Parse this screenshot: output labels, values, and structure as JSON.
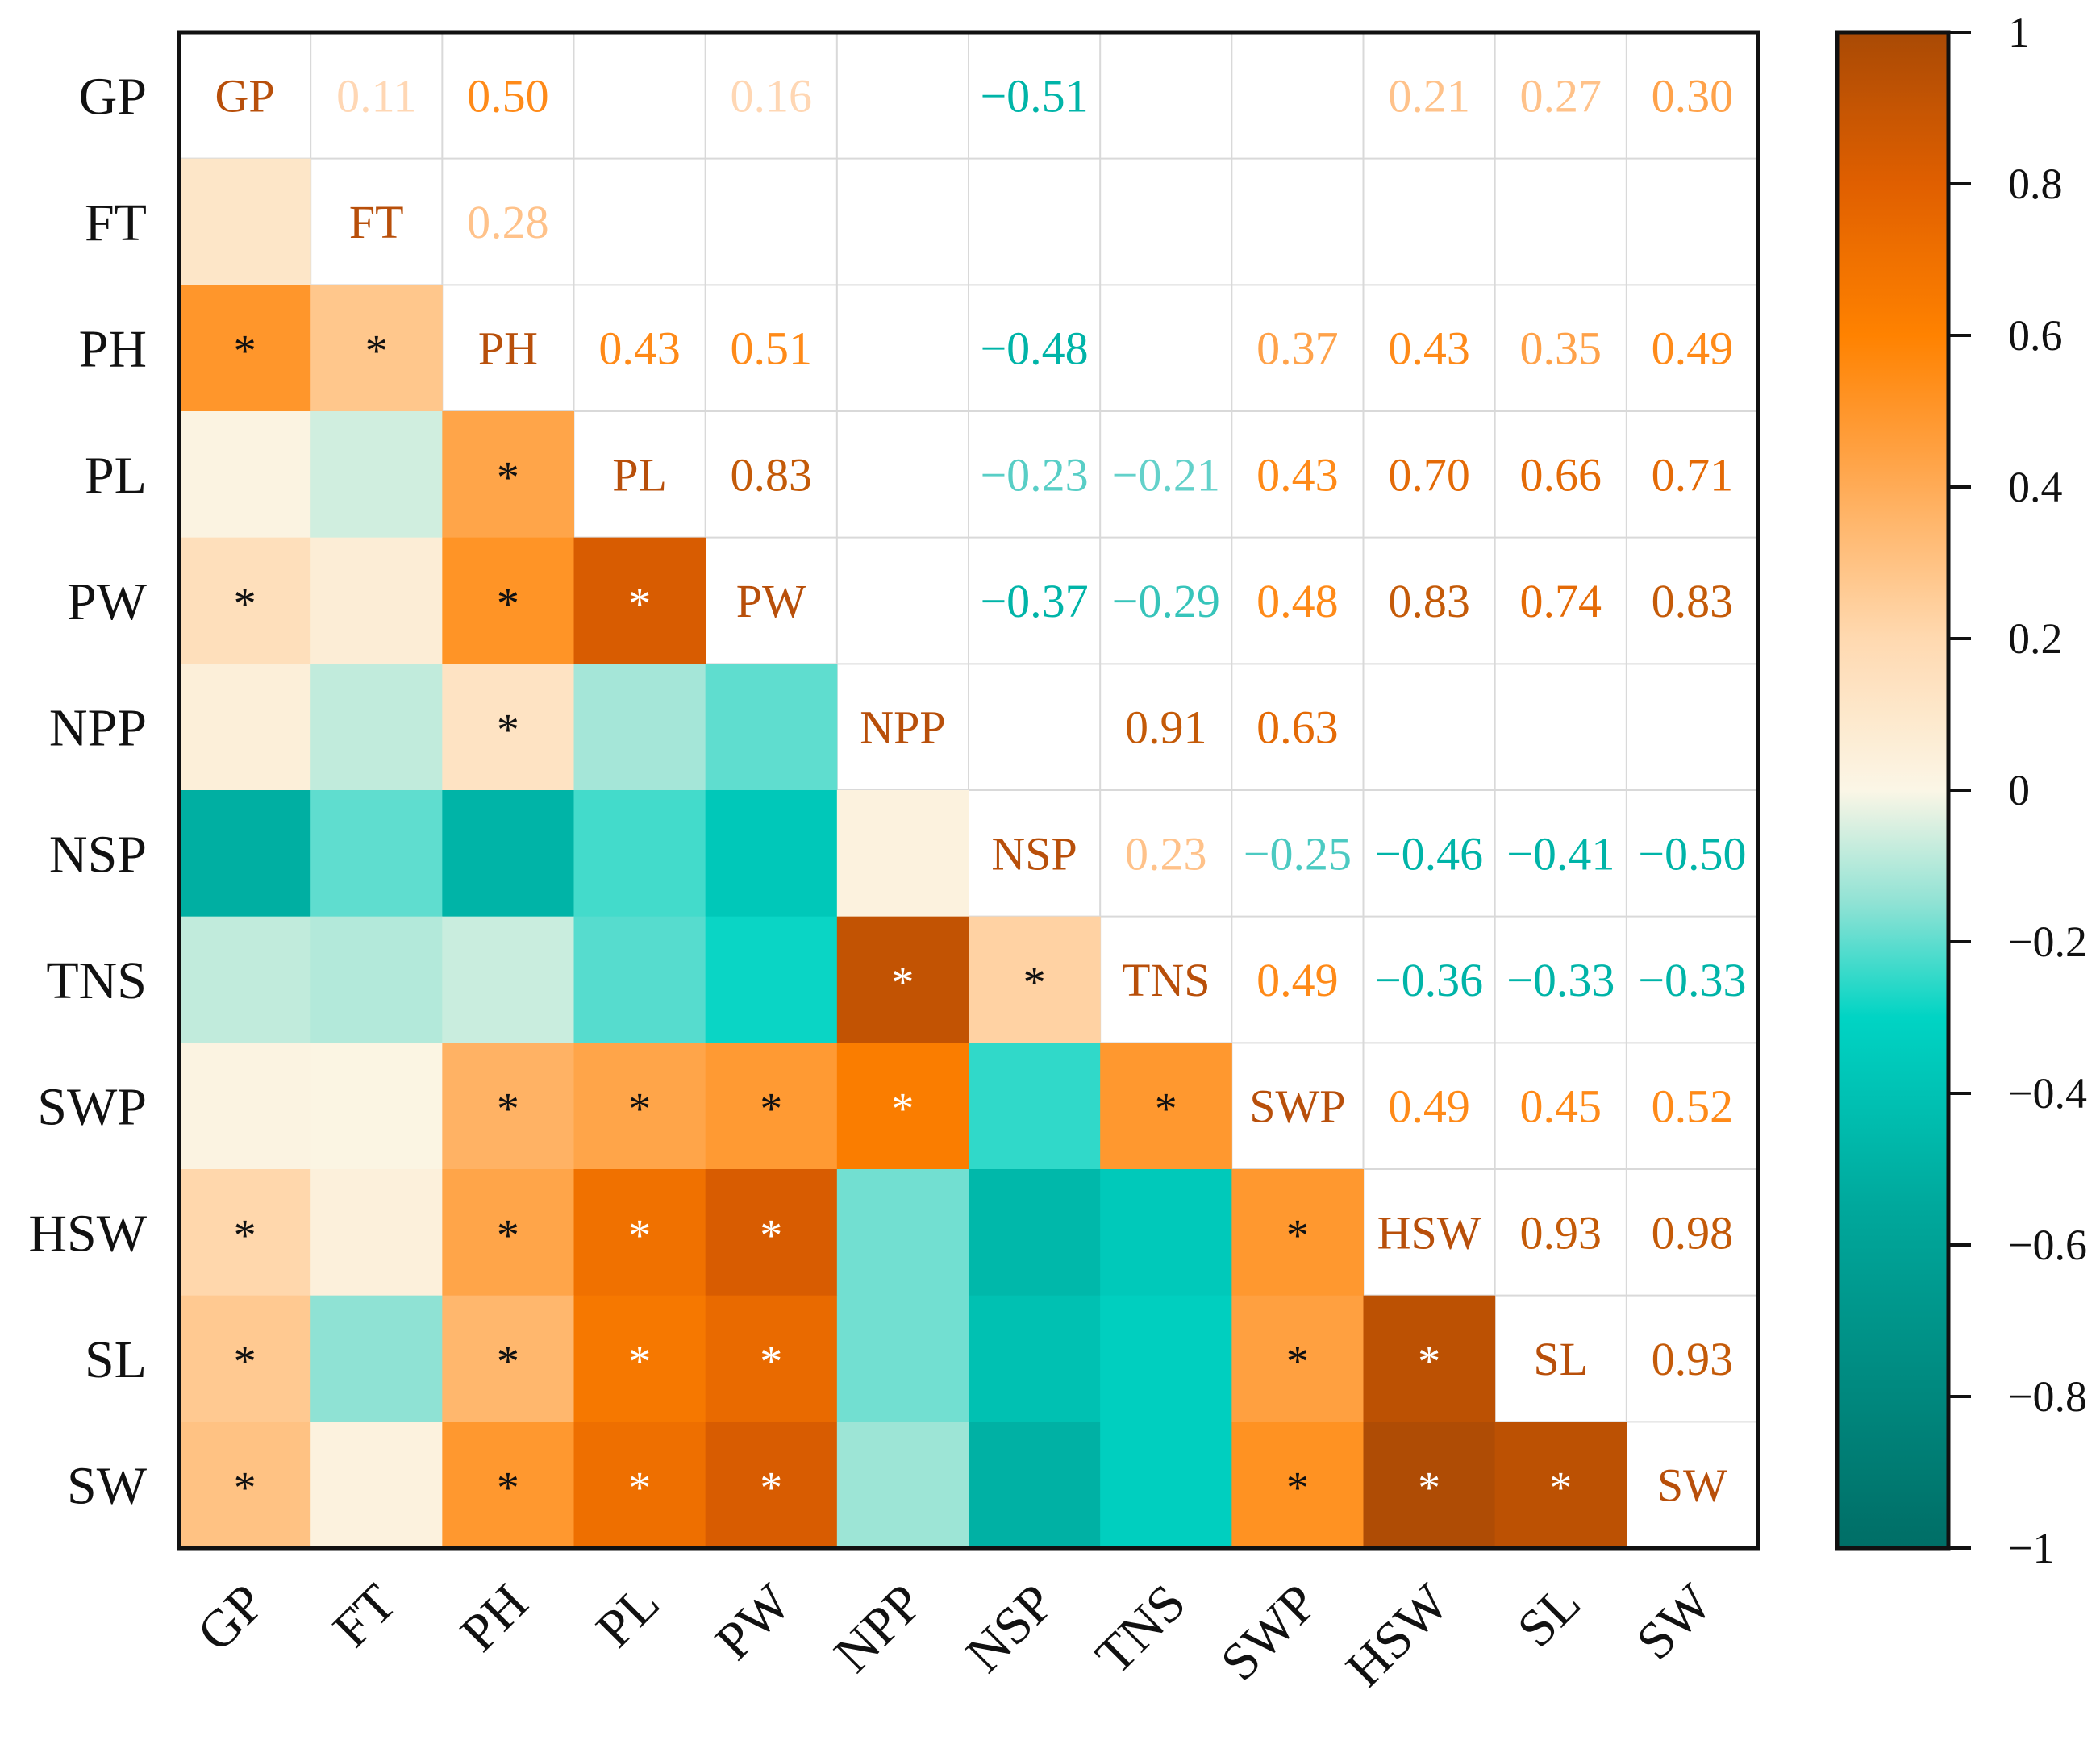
{
  "chart_data": {
    "type": "heatmap",
    "title": "",
    "variables": [
      "GP",
      "FT",
      "PH",
      "PL",
      "PW",
      "NPP",
      "NSP",
      "TNS",
      "SWP",
      "HSW",
      "SL",
      "SW"
    ],
    "correlation_matrix": [
      [
        1.0,
        0.11,
        0.5,
        0.02,
        0.16,
        0.05,
        -0.51,
        -0.08,
        0.02,
        0.21,
        0.27,
        0.3
      ],
      [
        0.11,
        1.0,
        0.28,
        -0.06,
        0.06,
        -0.08,
        -0.2,
        -0.1,
        0.01,
        0.04,
        -0.15,
        0.03
      ],
      [
        0.5,
        0.28,
        1.0,
        0.43,
        0.51,
        0.13,
        -0.48,
        -0.07,
        0.37,
        0.43,
        0.35,
        0.49
      ],
      [
        0.02,
        -0.06,
        0.43,
        1.0,
        0.83,
        -0.12,
        -0.23,
        -0.21,
        0.43,
        0.7,
        0.66,
        0.71
      ],
      [
        0.16,
        0.06,
        0.51,
        0.83,
        1.0,
        -0.2,
        -0.37,
        -0.29,
        0.48,
        0.83,
        0.74,
        0.83
      ],
      [
        0.05,
        -0.08,
        0.13,
        -0.12,
        -0.2,
        1.0,
        0.03,
        0.91,
        0.63,
        -0.18,
        -0.18,
        -0.13
      ],
      [
        -0.51,
        -0.2,
        -0.48,
        -0.23,
        -0.37,
        0.03,
        1.0,
        0.23,
        -0.25,
        -0.46,
        -0.41,
        -0.5
      ],
      [
        -0.08,
        -0.1,
        -0.07,
        -0.21,
        -0.29,
        0.91,
        0.23,
        1.0,
        0.49,
        -0.36,
        -0.33,
        -0.33
      ],
      [
        0.02,
        0.01,
        0.37,
        0.43,
        0.48,
        0.63,
        -0.25,
        0.49,
        1.0,
        0.49,
        0.45,
        0.52
      ],
      [
        0.21,
        0.04,
        0.43,
        0.7,
        0.83,
        -0.18,
        -0.46,
        -0.36,
        0.49,
        1.0,
        0.93,
        0.98
      ],
      [
        0.27,
        -0.15,
        0.35,
        0.66,
        0.74,
        -0.18,
        -0.41,
        -0.33,
        0.45,
        0.93,
        1.0,
        0.93
      ],
      [
        0.3,
        0.03,
        0.49,
        0.71,
        0.83,
        -0.13,
        -0.5,
        -0.33,
        0.52,
        0.98,
        0.93,
        1.0
      ]
    ],
    "upper_labels": [
      [
        "GP",
        "0.11",
        "0.50",
        "",
        "0.16",
        "",
        "−0.51",
        "",
        "",
        "0.21",
        "0.27",
        "0.30"
      ],
      [
        "",
        "FT",
        "0.28",
        "",
        "",
        "",
        "",
        "",
        "",
        "",
        "",
        ""
      ],
      [
        "",
        "",
        "PH",
        "0.43",
        "0.51",
        "",
        "−0.48",
        "",
        "0.37",
        "0.43",
        "0.35",
        "0.49"
      ],
      [
        "",
        "",
        "",
        "PL",
        "0.83",
        "",
        "−0.23",
        "−0.21",
        "0.43",
        "0.70",
        "0.66",
        "0.71"
      ],
      [
        "",
        "",
        "",
        "",
        "PW",
        "",
        "−0.37",
        "−0.29",
        "0.48",
        "0.83",
        "0.74",
        "0.83"
      ],
      [
        "",
        "",
        "",
        "",
        "",
        "NPP",
        "",
        "0.91",
        "0.63",
        "",
        "",
        ""
      ],
      [
        "",
        "",
        "",
        "",
        "",
        "",
        "NSP",
        "0.23",
        "−0.25",
        "−0.46",
        "−0.41",
        "−0.50"
      ],
      [
        "",
        "",
        "",
        "",
        "",
        "",
        "",
        "TNS",
        "0.49",
        "−0.36",
        "−0.33",
        "−0.33"
      ],
      [
        "",
        "",
        "",
        "",
        "",
        "",
        "",
        "",
        "SWP",
        "0.49",
        "0.45",
        "0.52"
      ],
      [
        "",
        "",
        "",
        "",
        "",
        "",
        "",
        "",
        "",
        "HSW",
        "0.93",
        "0.98"
      ],
      [
        "",
        "",
        "",
        "",
        "",
        "",
        "",
        "",
        "",
        "",
        "SL",
        "0.93"
      ],
      [
        "",
        "",
        "",
        "",
        "",
        "",
        "",
        "",
        "",
        "",
        "",
        "SW"
      ]
    ],
    "significance_star": "*",
    "significant_lower": [
      [
        0,
        0,
        0,
        0,
        0,
        0,
        0,
        0,
        0,
        0,
        0,
        0
      ],
      [
        0,
        0,
        0,
        0,
        0,
        0,
        0,
        0,
        0,
        0,
        0,
        0
      ],
      [
        1,
        1,
        0,
        0,
        0,
        0,
        0,
        0,
        0,
        0,
        0,
        0
      ],
      [
        0,
        0,
        1,
        0,
        0,
        0,
        0,
        0,
        0,
        0,
        0,
        0
      ],
      [
        1,
        0,
        1,
        1,
        0,
        0,
        0,
        0,
        0,
        0,
        0,
        0
      ],
      [
        0,
        0,
        1,
        0,
        0,
        0,
        0,
        0,
        0,
        0,
        0,
        0
      ],
      [
        0,
        0,
        0,
        0,
        0,
        0,
        0,
        0,
        0,
        0,
        0,
        0
      ],
      [
        0,
        0,
        0,
        0,
        0,
        1,
        1,
        0,
        0,
        0,
        0,
        0
      ],
      [
        0,
        0,
        1,
        1,
        1,
        1,
        0,
        1,
        0,
        0,
        0,
        0
      ],
      [
        1,
        0,
        1,
        1,
        1,
        0,
        0,
        0,
        1,
        0,
        0,
        0
      ],
      [
        1,
        0,
        1,
        1,
        1,
        0,
        0,
        0,
        1,
        1,
        0,
        0
      ],
      [
        1,
        0,
        1,
        1,
        1,
        0,
        0,
        0,
        1,
        1,
        1,
        0
      ]
    ],
    "colorbar": {
      "min": -1,
      "max": 1,
      "ticks": [
        1,
        0.8,
        0.6,
        0.4,
        0.2,
        0,
        -0.2,
        -0.4,
        -0.6,
        -0.8,
        -1
      ],
      "tick_labels": [
        "1",
        "0.8",
        "0.6",
        "0.4",
        "0.2",
        "0",
        "−0.2",
        "−0.4",
        "−0.6",
        "−0.8",
        "−1"
      ]
    },
    "colors": {
      "strong_positive": "#a94a05",
      "positive": "#ff8200",
      "weak_positive": "#ffd9b0",
      "zero": "#fbf6e6",
      "weak_negative": "#8fe2d4",
      "negative": "#00d4c4",
      "strong_negative": "#006e66",
      "positive_text": "#ff8a18",
      "negative_text": "#00b4a8",
      "diagonal_text": "#b84f0a",
      "grid": "#d9d9d9"
    }
  }
}
